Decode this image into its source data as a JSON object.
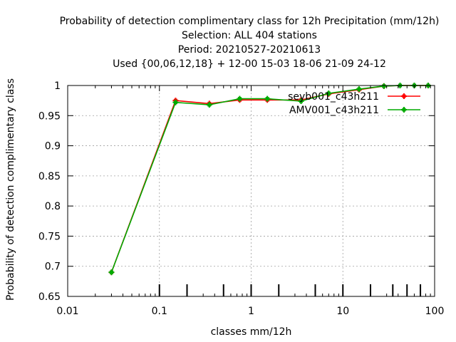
{
  "chart_data": {
    "type": "line",
    "title_lines": [
      "Probability of detection complimentary class  for 12h Precipitation (mm/12h)",
      "Selection: ALL    404 stations",
      "Period: 20210527-20210613",
      "Used {00,06,12,18} + 12-00 15-03 18-06 21-09 24-12"
    ],
    "xlabel": "classes mm/12h",
    "ylabel": "Probability of detection complimentary class",
    "xscale": "log",
    "xlim": [
      0.01,
      100
    ],
    "ylim": [
      0.65,
      1.0
    ],
    "x_ticks": [
      0.01,
      0.1,
      1,
      10,
      100
    ],
    "x_tick_labels": [
      "0.01",
      "0.1",
      "1",
      "10",
      "100"
    ],
    "y_ticks": [
      0.65,
      0.7,
      0.75,
      0.8,
      0.85,
      0.9,
      0.95,
      1.0
    ],
    "y_tick_labels": [
      "0.65",
      "0.7",
      "0.75",
      "0.8",
      "0.85",
      "0.9",
      "0.95",
      "1"
    ],
    "grid": true,
    "legend_position": "top-right",
    "class_markers_x": [
      0.1,
      0.2,
      0.5,
      1,
      2,
      5,
      10,
      20,
      35,
      50,
      70
    ],
    "series": [
      {
        "name": "seyb001_c43h211",
        "color": "#ff0000",
        "x": [
          0.03,
          0.15,
          0.35,
          0.75,
          1.5,
          3.5,
          7,
          15,
          28,
          42,
          60,
          85
        ],
        "y": [
          0.69,
          0.975,
          0.97,
          0.976,
          0.976,
          0.976,
          0.986,
          0.993,
          0.999,
          1.0,
          1.0,
          1.0
        ]
      },
      {
        "name": "AMV001_c43h211",
        "color": "#00aa00",
        "x": [
          0.03,
          0.15,
          0.35,
          0.75,
          1.5,
          3.5,
          7,
          15,
          28,
          42,
          60,
          85
        ],
        "y": [
          0.69,
          0.972,
          0.968,
          0.978,
          0.978,
          0.974,
          0.987,
          0.994,
          0.999,
          1.0,
          1.0,
          1.0
        ]
      }
    ]
  }
}
